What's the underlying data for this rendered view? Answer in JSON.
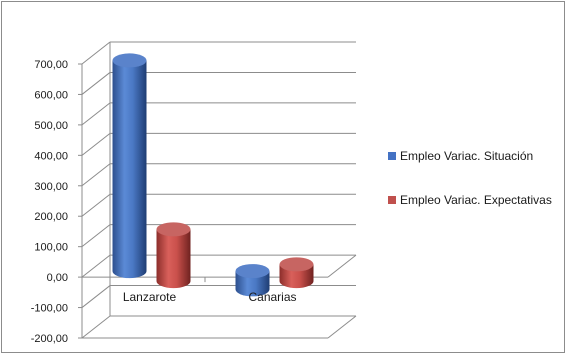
{
  "chart_data": {
    "type": "bar",
    "subtype": "3d-cylinder",
    "categories": [
      "Lanzarote",
      "Canarias"
    ],
    "series": [
      {
        "name": "Empleo Variac. Situación",
        "values": [
          692,
          -60
        ],
        "color": "#4472C4"
      },
      {
        "name": "Empleo Variac. Expectativas",
        "values": [
          170,
          55
        ],
        "color": "#C0504D"
      }
    ],
    "ylim": [
      -200,
      700
    ],
    "yticks": [
      "700,00",
      "600,00",
      "500,00",
      "400,00",
      "300,00",
      "200,00",
      "100,00",
      "0,00",
      "-100,00",
      "-200,00"
    ],
    "grid": true,
    "legend_position": "right"
  }
}
